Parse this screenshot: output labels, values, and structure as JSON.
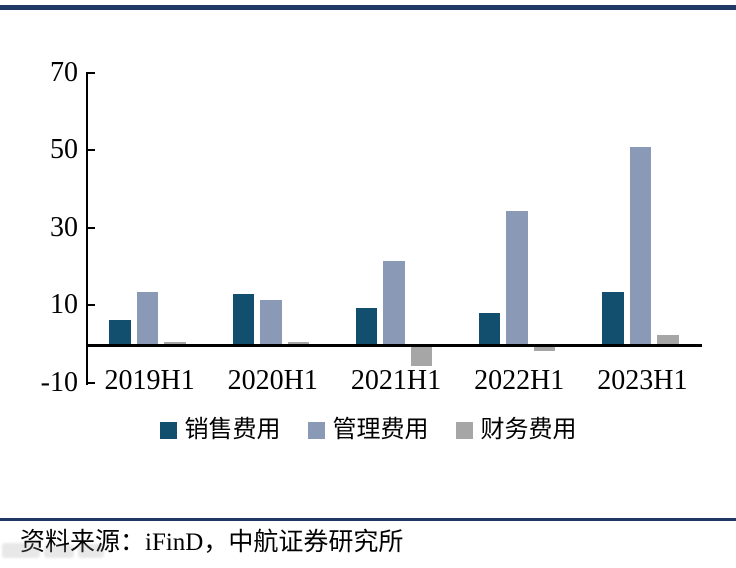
{
  "page": {
    "top_rule_color": "#1F3864",
    "divider_color": "#1F3864",
    "source_text": "资料来源：iFinD，中航证券研究所"
  },
  "chart_data": {
    "type": "bar",
    "title": "",
    "categories": [
      "2019H1",
      "2020H1",
      "2021H1",
      "2022H1",
      "2023H1"
    ],
    "series": [
      {
        "name": "销售费用",
        "color": "#124E6E",
        "values": [
          6.3,
          13.0,
          9.3,
          8.0,
          13.5
        ]
      },
      {
        "name": "管理费用",
        "color": "#8A99B5",
        "values": [
          13.5,
          11.3,
          21.5,
          34.3,
          50.8
        ]
      },
      {
        "name": "财务费用",
        "color": "#A6A6A6",
        "values": [
          0.4,
          0.4,
          -5.0,
          -1.0,
          2.3
        ]
      }
    ],
    "yticks": [
      70,
      50,
      30,
      10,
      -10
    ],
    "ylim": [
      -10,
      70
    ],
    "xlabel": "",
    "ylabel": "",
    "grid": false,
    "legend_position": "bottom",
    "axis_color": "#000000"
  }
}
